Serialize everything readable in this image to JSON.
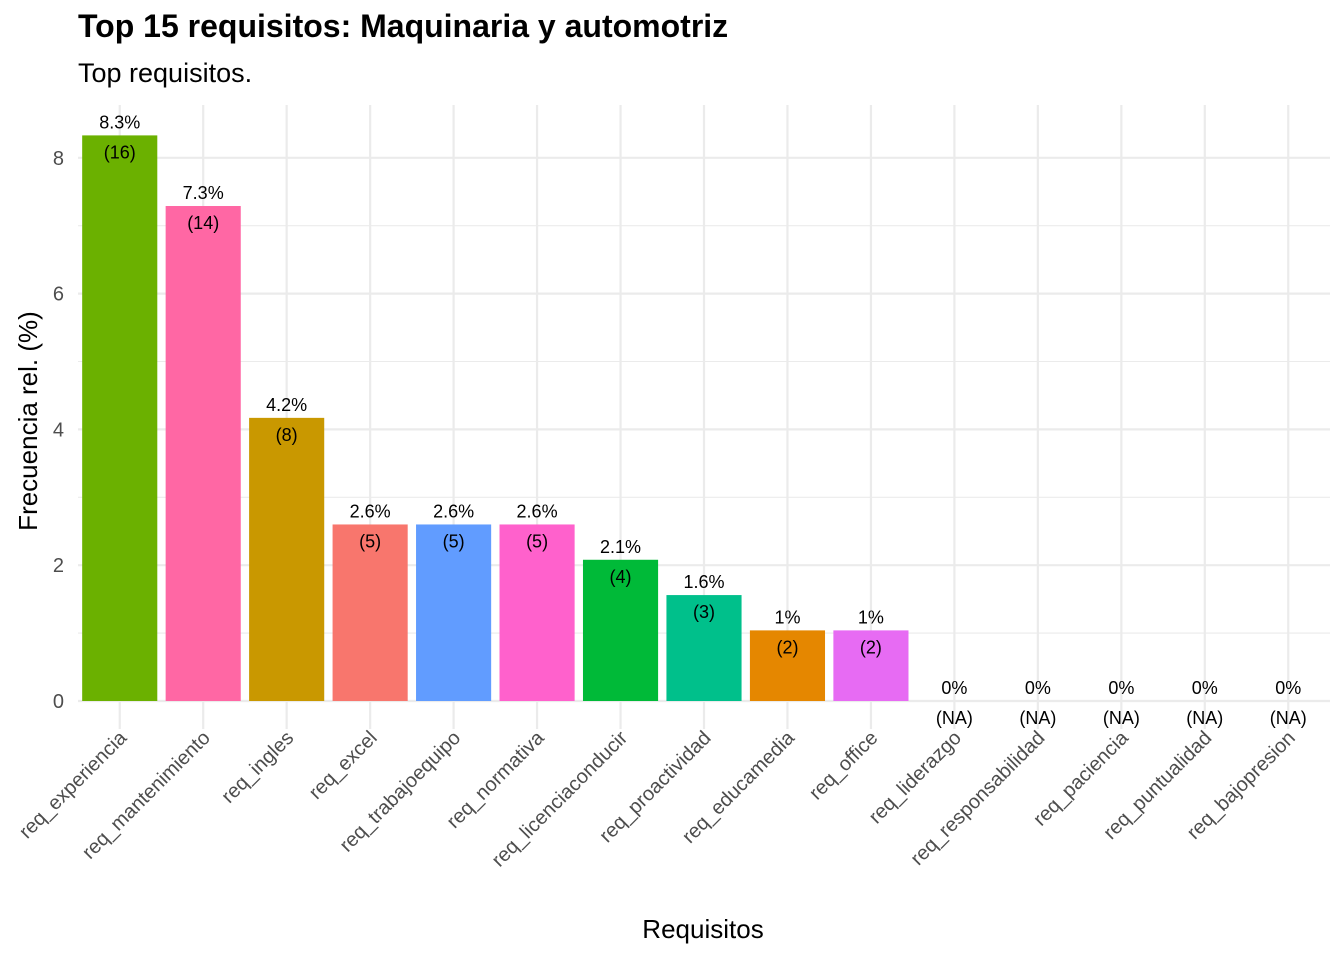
{
  "chart_data": {
    "type": "bar",
    "title": "Top 15 requisitos: Maquinaria y automotriz",
    "subtitle": "Top requisitos.",
    "xlabel": "Requisitos",
    "ylabel": "Frecuencia rel. (%)",
    "ylim": [
      0,
      8.5
    ],
    "yticks": [
      "0",
      "2",
      "4",
      "6",
      "8"
    ],
    "grid": true,
    "legend": "none",
    "categories": [
      "req_experiencia",
      "req_mantenimiento",
      "req_ingles",
      "req_excel",
      "req_trabajoequipo",
      "req_normativa",
      "req_licenciaconducir",
      "req_proactividad",
      "req_educamedia",
      "req_office",
      "req_liderazgo",
      "req_responsabilidad",
      "req_paciencia",
      "req_puntualidad",
      "req_bajopresion"
    ],
    "values": [
      8.33,
      7.29,
      4.17,
      2.6,
      2.6,
      2.6,
      2.08,
      1.56,
      1.04,
      1.04,
      0,
      0,
      0,
      0,
      0
    ],
    "pct_labels": [
      "8.3%",
      "7.3%",
      "4.2%",
      "2.6%",
      "2.6%",
      "2.6%",
      "2.1%",
      "1.6%",
      "1%",
      "1%",
      "0%",
      "0%",
      "0%",
      "0%",
      "0%"
    ],
    "count_labels": [
      "(16)",
      "(14)",
      "(8)",
      "(5)",
      "(5)",
      "(5)",
      "(4)",
      "(3)",
      "(2)",
      "(2)",
      "(NA)",
      "(NA)",
      "(NA)",
      "(NA)",
      "(NA)"
    ],
    "colors": [
      "#6BB100",
      "#FF67A4",
      "#C99800",
      "#F8766D",
      "#619CFF",
      "#FF61CC",
      "#00BA38",
      "#00C08B",
      "#E58700",
      "#E76BF3",
      "#999999",
      "#999999",
      "#999999",
      "#999999",
      "#999999"
    ]
  }
}
